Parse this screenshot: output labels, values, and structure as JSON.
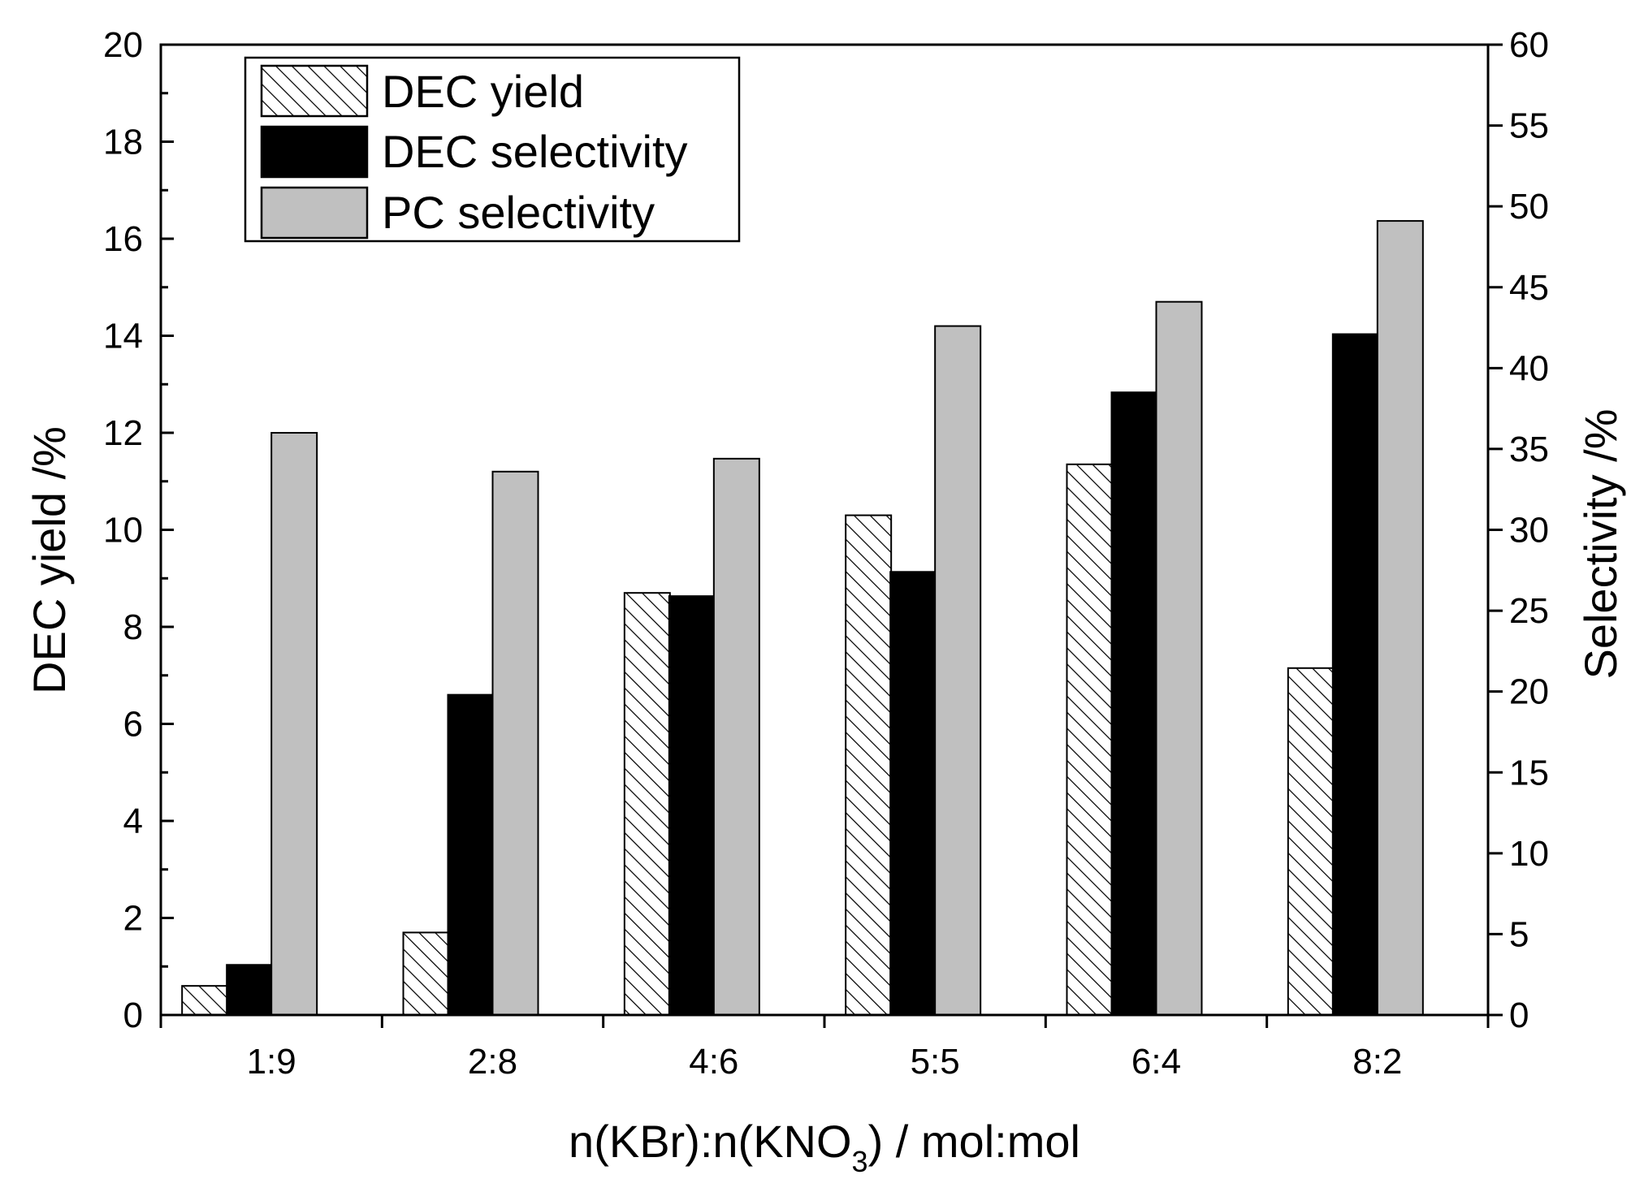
{
  "chart_data": {
    "type": "bar",
    "categories": [
      "1:9",
      "2:8",
      "4:6",
      "5:5",
      "6:4",
      "8:2"
    ],
    "series": [
      {
        "name": "DEC yield",
        "axis": "left",
        "fill": "hatch",
        "color": "#ffffff",
        "values": [
          0.6,
          1.7,
          8.7,
          10.3,
          11.35,
          7.15
        ]
      },
      {
        "name": "DEC selectivity",
        "axis": "right",
        "fill": "solid",
        "color": "#000000",
        "values": [
          3.1,
          19.8,
          25.9,
          27.4,
          38.5,
          42.1
        ]
      },
      {
        "name": "PC selectivity",
        "axis": "right",
        "fill": "solid",
        "color": "#c0c0c0",
        "values": [
          36.0,
          33.6,
          34.4,
          42.6,
          44.1,
          49.1
        ]
      }
    ],
    "xlabel_parts": [
      "n(KBr):n(KNO",
      "3",
      ") / mol:mol"
    ],
    "ylabel_left": "DEC yield  /%",
    "ylabel_right": "Selectivity /%",
    "ylim_left": [
      0,
      20
    ],
    "yticks_left": [
      "0",
      "2",
      "4",
      "6",
      "8",
      "10",
      "12",
      "14",
      "16",
      "18",
      "20"
    ],
    "ylim_right": [
      0,
      60
    ],
    "yticks_right": [
      "0",
      "5",
      "10",
      "15",
      "20",
      "25",
      "30",
      "35",
      "40",
      "45",
      "50",
      "55",
      "60"
    ],
    "grid": false,
    "legend_position": "top-left"
  }
}
